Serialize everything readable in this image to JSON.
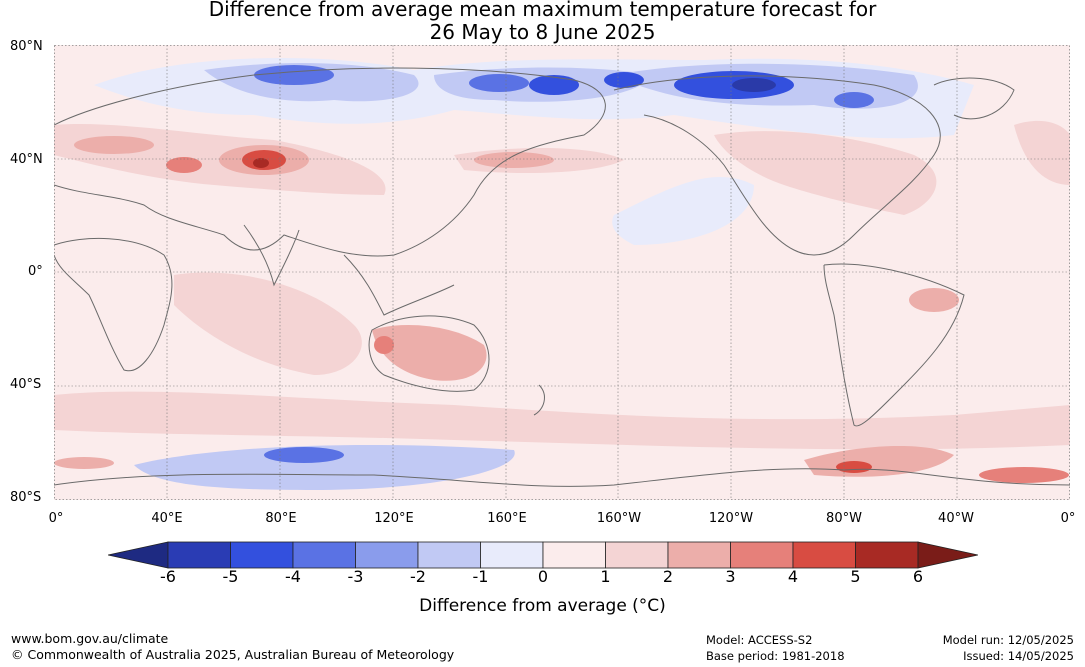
{
  "title": {
    "line1": "Difference from average mean maximum temperature forecast for",
    "line2": "26 May to 8 June 2025"
  },
  "map": {
    "lat_labels": [
      "80°N",
      "40°N",
      "0°",
      "40°S",
      "80°S"
    ],
    "lon_labels": [
      "0°",
      "40°E",
      "80°E",
      "120°E",
      "160°E",
      "160°W",
      "120°W",
      "80°W",
      "40°W",
      "0°"
    ],
    "colors": {
      "-6": "#2a3aa8",
      "-5": "#3350de",
      "-4": "#5a72e4",
      "-3": "#8a9cec",
      "-2": "#c1c9f4",
      "-1": "#e8ebfb",
      "0": "#fbecec",
      "1": "#f4d4d4",
      "2": "#ecaeaa",
      "3": "#e6807a",
      "4": "#d84c42",
      "5": "#a82a24"
    }
  },
  "colorbar": {
    "ticks": [
      "-6",
      "-5",
      "-4",
      "-3",
      "-2",
      "-1",
      "0",
      "1",
      "2",
      "3",
      "4",
      "5",
      "6"
    ],
    "colors": [
      "#1e2a82",
      "#2a3cb4",
      "#3350de",
      "#5a72e4",
      "#8a9cec",
      "#c1c9f4",
      "#e8ebfb",
      "#fbecec",
      "#f4d4d4",
      "#ecaeaa",
      "#e6807a",
      "#d84c42",
      "#a82a24",
      "#7a1c18"
    ],
    "label": "Difference from average (°C)"
  },
  "footer": {
    "url": "www.bom.gov.au/climate",
    "copyright": "© Commonwealth of Australia 2025, Australian Bureau of Meteorology",
    "model": "Model: ACCESS-S2",
    "base_period": "Base period: 1981-2018",
    "model_run": "Model run: 12/05/2025",
    "issued": "Issued: 14/05/2025"
  }
}
